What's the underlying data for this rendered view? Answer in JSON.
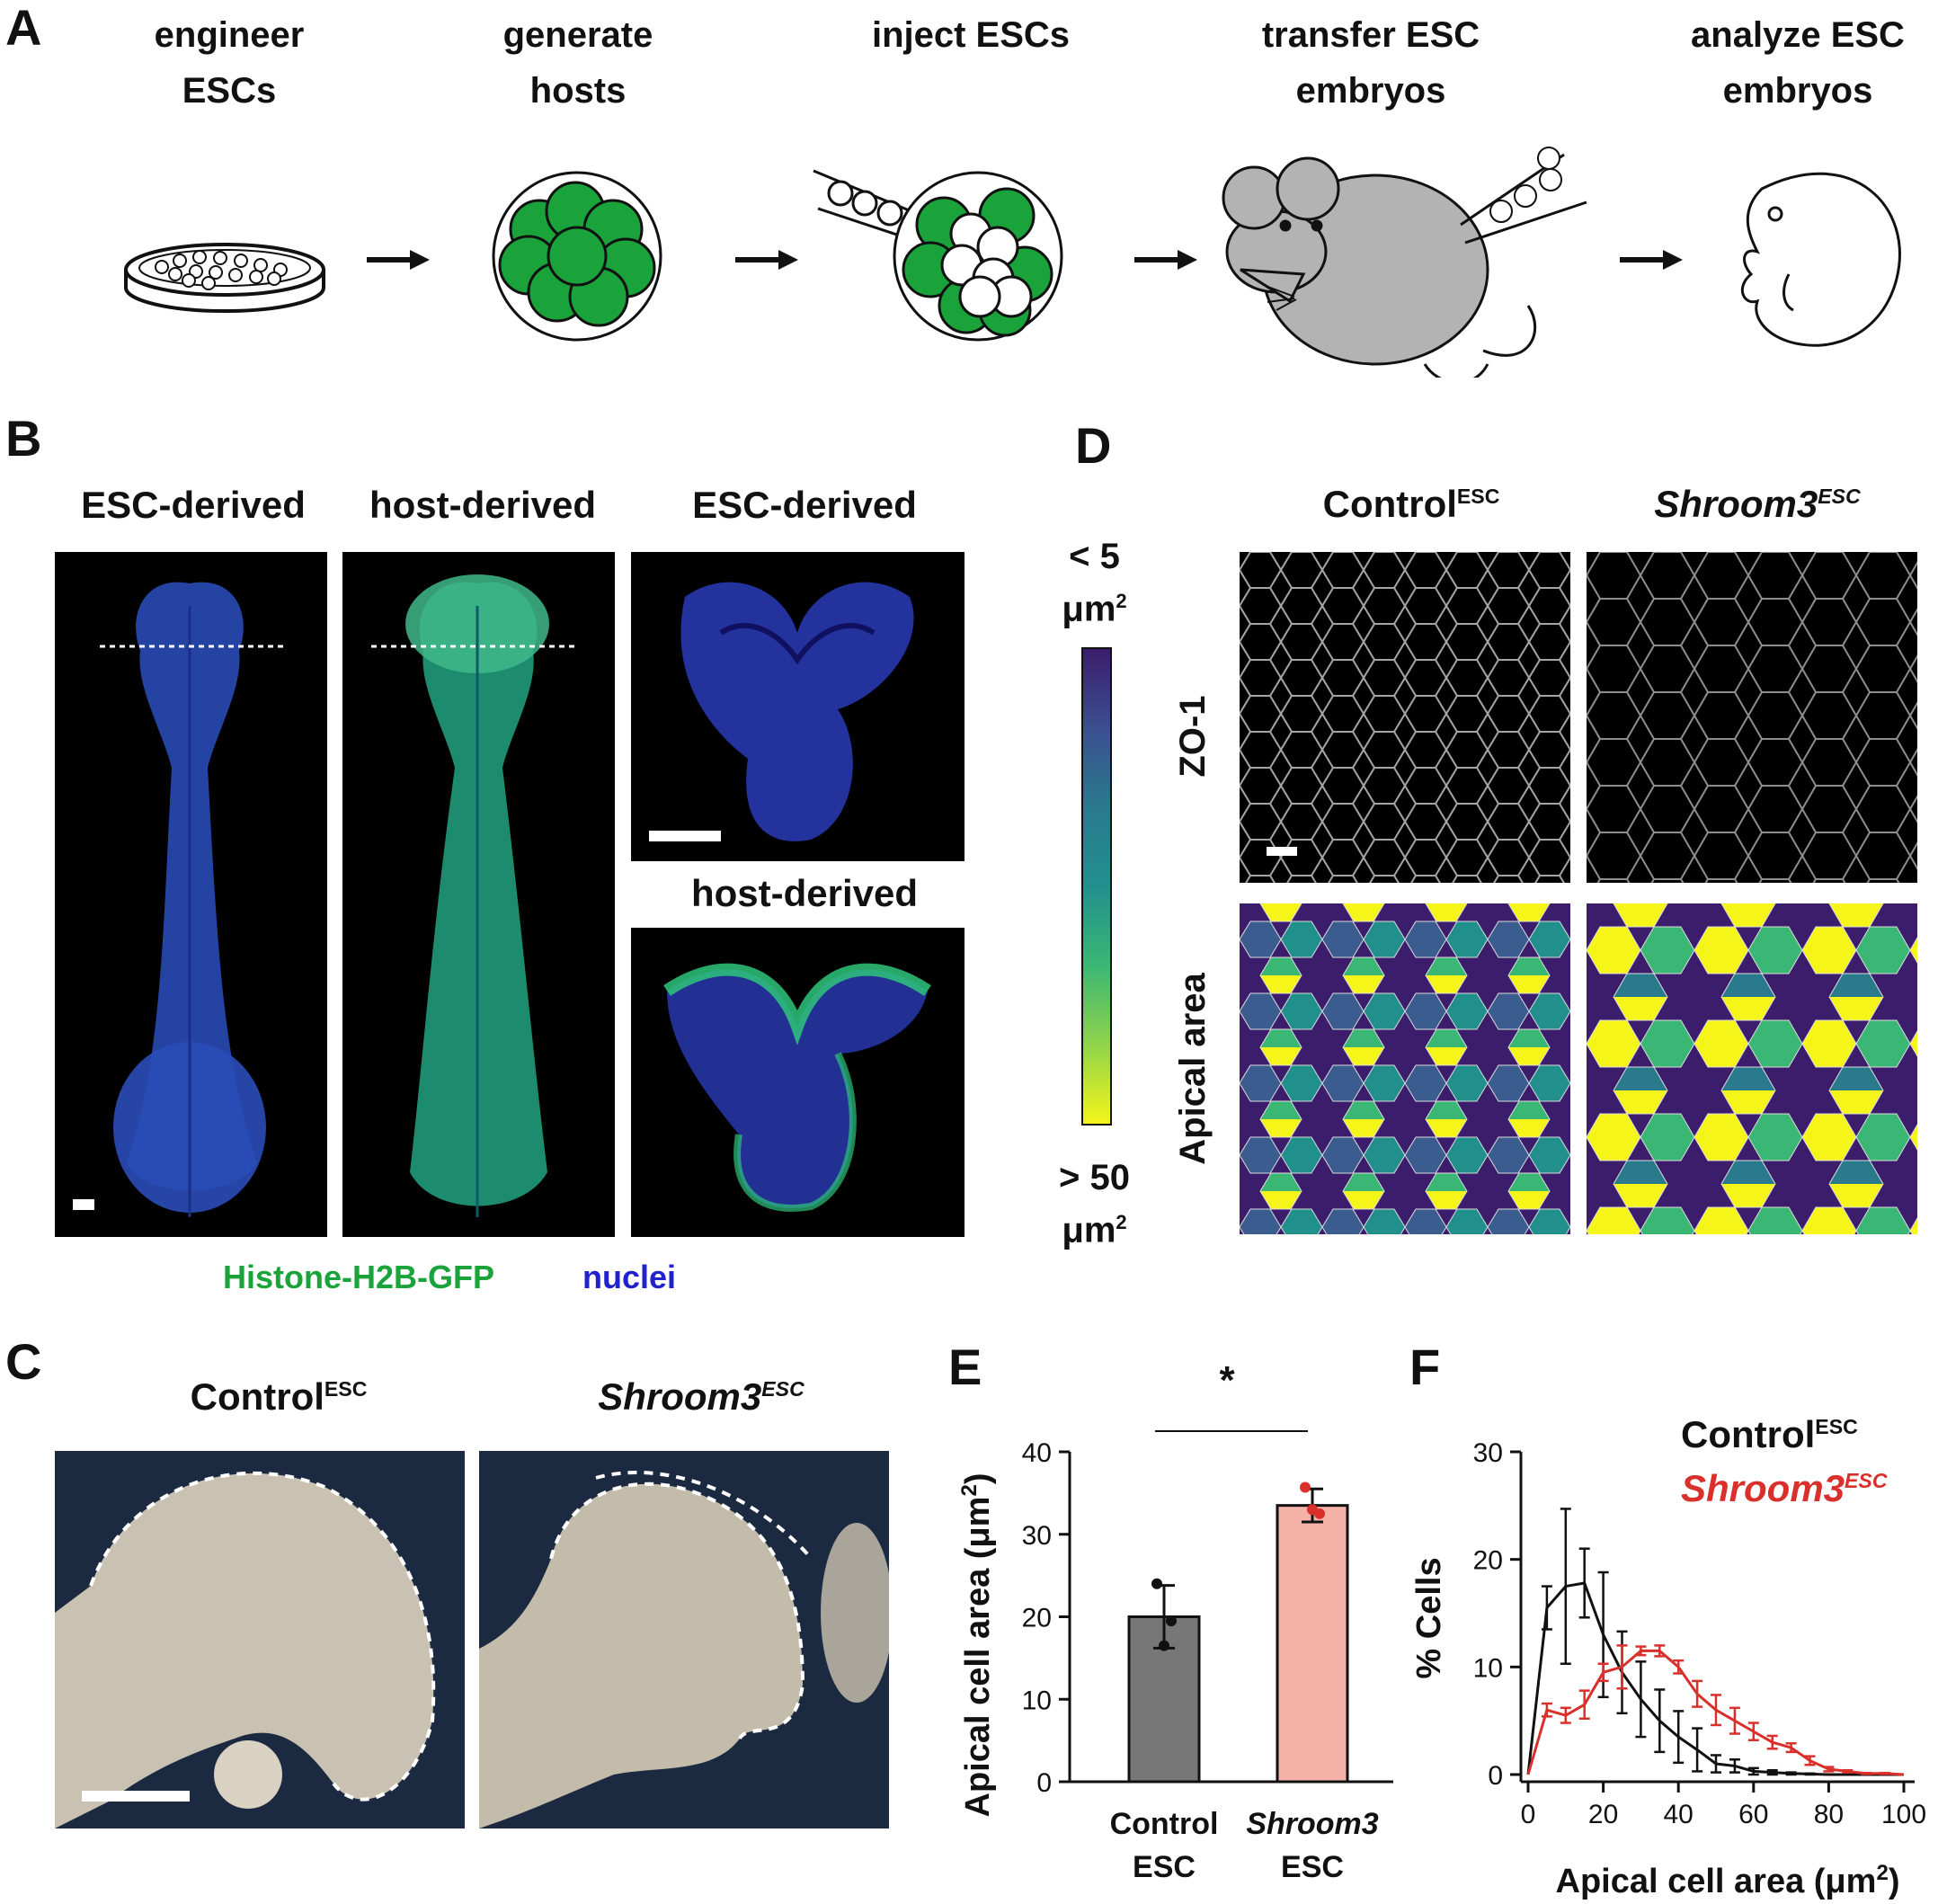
{
  "panel_a": {
    "label": "A",
    "steps": [
      {
        "line1": "engineer",
        "line2": "ESCs"
      },
      {
        "line1": "generate",
        "line2": "hosts"
      },
      {
        "line1": "inject ESCs",
        "line2": ""
      },
      {
        "line1": "transfer ESC",
        "line2": "embryos"
      },
      {
        "line1": "analyze ESC",
        "line2": "embryos"
      }
    ],
    "colors": {
      "green": "#1aa33a",
      "gray": "#b3b3b3"
    }
  },
  "panel_b": {
    "label": "B",
    "col1_title": "ESC-derived",
    "col2_title": "host-derived",
    "col3_top_title": "ESC-derived",
    "col3_bottom_title": "host-derived",
    "legend_gfp": "Histone-H2B-GFP",
    "legend_nuclei": "nuclei",
    "colors": {
      "gfp": "#1aa33a",
      "nuclei": "#2222cc"
    }
  },
  "panel_c": {
    "label": "C",
    "left_title": "Control",
    "left_sup": "ESC",
    "right_title": "Shroom3",
    "right_sup": "ESC"
  },
  "panel_d": {
    "label": "D",
    "colorbar_top_1": "< 5",
    "colorbar_top_2": "μm",
    "colorbar_top_sup": "2",
    "colorbar_bottom_1": "> 50",
    "colorbar_bottom_2": "μm",
    "colorbar_bottom_sup": "2",
    "col1_title": "Control",
    "col1_sup": "ESC",
    "col2_title": "Shroom3",
    "col2_sup": "ESC",
    "row1_label": "ZO-1",
    "row2_label": "Apical area",
    "colors": {
      "viridis_dark": "#3b1d6b",
      "viridis_mid": "#21908d",
      "viridis_yellow": "#f5f51a"
    }
  },
  "panel_e": {
    "label": "E",
    "significance": "*",
    "ylabel": "Apical cell area (μm",
    "ylabel_sup": "2",
    "ylabel_end": ")",
    "x1_line1": "Control",
    "x1_line2": "ESC",
    "x2_line1": "Shroom3",
    "x2_line2": "ESC"
  },
  "panel_f": {
    "label": "F",
    "legend_control": "Control",
    "legend_control_sup": "ESC",
    "legend_shroom": "Shroom3",
    "legend_shroom_sup": "ESC",
    "ylabel": "% Cells",
    "xlabel": "Apical cell area (μm",
    "xlabel_sup": "2",
    "xlabel_end": ")"
  },
  "chart_data": [
    {
      "type": "bar",
      "panel": "E",
      "categories": [
        "Control ESC",
        "Shroom3 ESC"
      ],
      "values": [
        20,
        33.5
      ],
      "error": [
        3.8,
        2.0
      ],
      "points": [
        [
          24,
          16.5,
          19.5
        ],
        [
          35.7,
          33,
          32.5
        ]
      ],
      "colors": [
        "#777777",
        "#f4b2a8"
      ],
      "ylim": [
        0,
        40
      ],
      "yticks": [
        0,
        10,
        20,
        30,
        40
      ],
      "significance": "*"
    },
    {
      "type": "line",
      "panel": "F",
      "x": [
        0,
        5,
        10,
        15,
        20,
        25,
        30,
        35,
        40,
        45,
        50,
        55,
        60,
        65,
        70,
        75,
        80,
        85,
        90,
        95,
        100
      ],
      "series": [
        {
          "name": "ControlESC",
          "color": "#111111",
          "values": [
            0,
            15.5,
            17.5,
            17.8,
            13,
            9.5,
            7,
            5,
            3.5,
            2.3,
            1,
            0.8,
            0.3,
            0.2,
            0.1,
            0.05,
            0,
            0,
            0,
            0,
            0
          ],
          "error": [
            0,
            2,
            7.2,
            3.2,
            5.8,
            3.8,
            3.5,
            2.9,
            2.4,
            2.0,
            0.8,
            0.6,
            0.3,
            0.2,
            0.1,
            0.05,
            0,
            0,
            0,
            0,
            0
          ]
        },
        {
          "name": "Shroom3ESC",
          "color": "#d9302c",
          "values": [
            0,
            6,
            5.5,
            6.5,
            9.5,
            10,
            11.5,
            11.5,
            10,
            7.5,
            6,
            5,
            4,
            3,
            2.5,
            1.3,
            0.5,
            0.3,
            0.1,
            0.1,
            0
          ],
          "error": [
            0,
            0.6,
            0.7,
            1.3,
            0.8,
            2.0,
            0.4,
            0.5,
            0.6,
            1.2,
            1.4,
            1.2,
            0.8,
            0.6,
            0.4,
            0.4,
            0.2,
            0.1,
            0.05,
            0.05,
            0
          ]
        }
      ],
      "xlim": [
        0,
        100
      ],
      "ylim": [
        0,
        30
      ],
      "xticks": [
        0,
        20,
        40,
        60,
        80,
        100
      ],
      "yticks": [
        0,
        10,
        20,
        30
      ]
    }
  ]
}
